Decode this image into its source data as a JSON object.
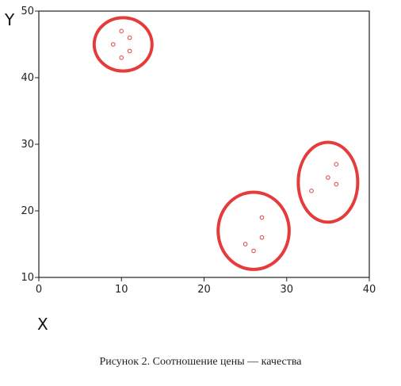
{
  "figure": {
    "caption": "Рисунок 2. Соотношение цены — качества"
  },
  "chart_data": {
    "type": "scatter",
    "title": "",
    "xlabel": "X",
    "ylabel": "Y",
    "xlim": [
      0,
      40
    ],
    "ylim": [
      10,
      50
    ],
    "xticks": [
      0,
      10,
      20,
      30,
      40
    ],
    "yticks": [
      10,
      20,
      30,
      40,
      50
    ],
    "grid": false,
    "legend": "none",
    "series": [
      {
        "points": [
          [
            9,
            45
          ],
          [
            10,
            47
          ],
          [
            11,
            46
          ],
          [
            11,
            44
          ],
          [
            10,
            43
          ]
        ]
      },
      {
        "points": [
          [
            25,
            15
          ],
          [
            26,
            14
          ],
          [
            27,
            16
          ],
          [
            27,
            19
          ]
        ]
      },
      {
        "points": [
          [
            33,
            23
          ],
          [
            35,
            25
          ],
          [
            36,
            27
          ],
          [
            36,
            24
          ]
        ]
      }
    ],
    "clusters": [
      {
        "center": [
          10.2,
          45
        ],
        "rx": 3.5,
        "ry": 4.0
      },
      {
        "center": [
          26.0,
          17
        ],
        "rx": 4.3,
        "ry": 5.8
      },
      {
        "center": [
          35.0,
          24.3
        ],
        "rx": 3.6,
        "ry": 6.0
      }
    ],
    "colors": {
      "marker": "#e04040",
      "cluster": "#e63b3b",
      "axis": "#222222"
    }
  }
}
